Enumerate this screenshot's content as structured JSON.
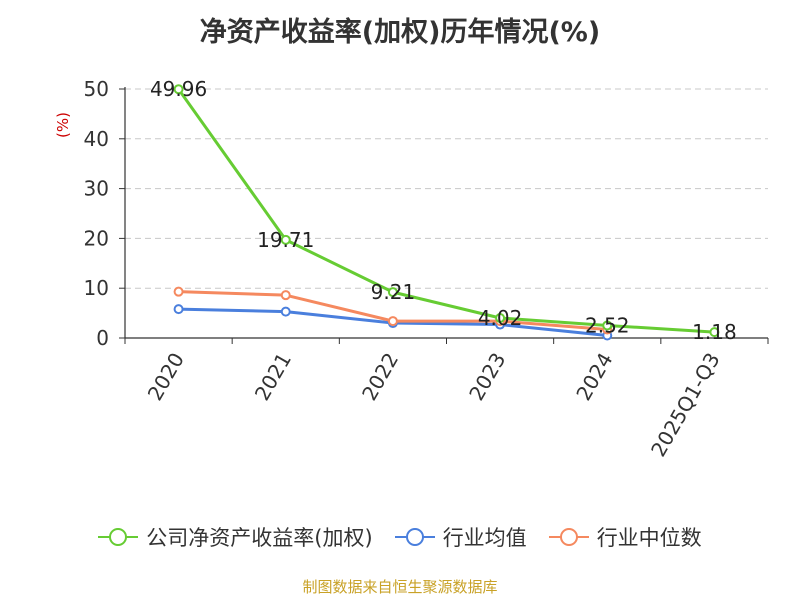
{
  "title": "净资产收益率(加权)历年情况(%)",
  "source_note": "制图数据来自恒生聚源数据库",
  "colors": {
    "company": "#66cc33",
    "industry_avg": "#4a7fdd",
    "industry_median": "#f5895f",
    "source_note": "#c9a227",
    "ylabel": "#cc0000"
  },
  "chart_data": {
    "type": "line",
    "title": "净资产收益率(加权)历年情况(%)",
    "xlabel": "",
    "ylabel": "(%)",
    "categories": [
      "2020",
      "2021",
      "2022",
      "2023",
      "2024",
      "2025Q1-Q3"
    ],
    "ylim": [
      0,
      50
    ],
    "yticks": [
      0,
      10,
      20,
      30,
      40,
      50
    ],
    "grid": "horizontal dashed",
    "legend_position": "bottom",
    "series": [
      {
        "name": "公司净资产收益率(加权)",
        "values": [
          49.96,
          19.71,
          9.21,
          4.02,
          2.52,
          1.18
        ],
        "labels": [
          "49.96",
          "19.71",
          "9.21",
          "4.02",
          "2.52",
          "1.18"
        ]
      },
      {
        "name": "行业均值",
        "values": [
          5.8,
          5.3,
          3.0,
          2.7,
          0.5,
          null
        ]
      },
      {
        "name": "行业中位数",
        "values": [
          9.3,
          8.6,
          3.4,
          3.4,
          1.7,
          null
        ]
      }
    ]
  }
}
